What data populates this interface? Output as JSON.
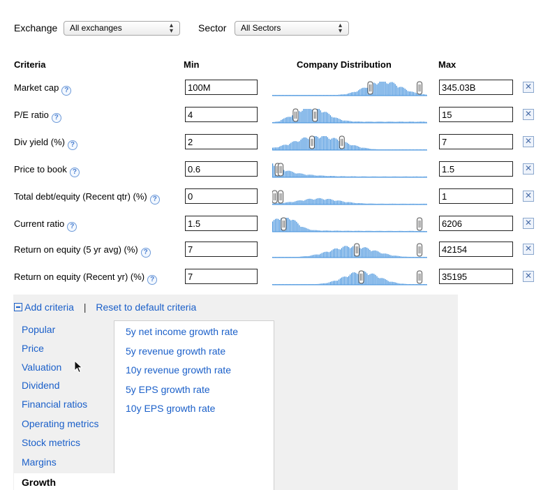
{
  "filters": {
    "exchange_label": "Exchange",
    "exchange_value": "All exchanges",
    "sector_label": "Sector",
    "sector_value": "All Sectors"
  },
  "table_headers": {
    "criteria": "Criteria",
    "min": "Min",
    "distribution": "Company Distribution",
    "max": "Max"
  },
  "criteria": [
    {
      "label": "Market cap",
      "min": "100M",
      "max": "345.03B",
      "shape": "rightheavy"
    },
    {
      "label": "P/E ratio",
      "min": "4",
      "max": "15",
      "shape": "leftpeak"
    },
    {
      "label": "Div yield (%)",
      "min": "2",
      "max": "7",
      "shape": "broadleft"
    },
    {
      "label": "Price to book",
      "min": "0.6",
      "max": "1.5",
      "shape": "decay"
    },
    {
      "label": "Total debt/equity (Recent qtr) (%)",
      "min": "0",
      "max": "1",
      "shape": "hump"
    },
    {
      "label": "Current ratio",
      "min": "1.5",
      "max": "6206",
      "shape": "decay2"
    },
    {
      "label": "Return on equity (5 yr avg) (%)",
      "min": "7",
      "max": "42154",
      "shape": "midhump"
    },
    {
      "label": "Return on equity (Recent yr) (%)",
      "min": "7",
      "max": "35195",
      "shape": "midhump2"
    }
  ],
  "actions": {
    "add_criteria": "Add criteria",
    "separator": "|",
    "reset": "Reset to default criteria"
  },
  "categories": [
    "Popular",
    "Price",
    "Valuation",
    "Dividend",
    "Financial ratios",
    "Operating metrics",
    "Stock metrics",
    "Margins",
    "Growth"
  ],
  "active_category": "Growth",
  "growth_items": [
    "5y net income growth rate",
    "5y revenue growth rate",
    "10y revenue growth rate",
    "5y EPS growth rate",
    "10y EPS growth rate"
  ],
  "icons": {
    "help": "question-circle-icon",
    "remove": "x-box-icon",
    "collapse": "minus-box-icon",
    "cursor": "mouse-pointer-icon"
  },
  "colors": {
    "link": "#1a5fc9",
    "bars": "#3f8fdc"
  }
}
